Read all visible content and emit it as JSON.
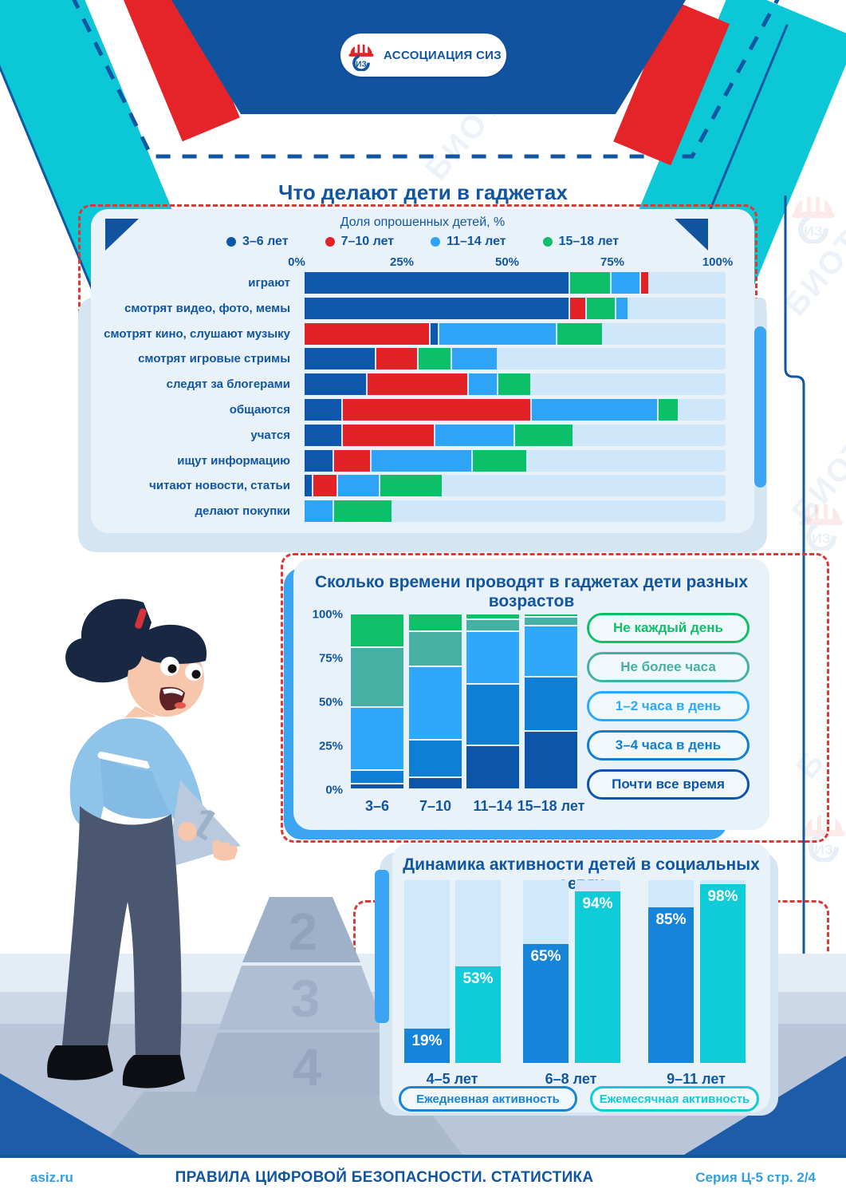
{
  "logo": {
    "text": "АССОЦИАЦИЯ СИЗ"
  },
  "watermark_text": "БИОТ",
  "footer": {
    "site": "asiz.ru",
    "title": "ПРАВИЛА ЦИФРОВОЙ БЕЗОПАСНОСТИ. СТАТИСТИКА",
    "series": "Серия Ц-5 стр. 2/4"
  },
  "colors": {
    "navy_text": "#1156a3",
    "header_band": "#11539e",
    "decor_red": "#e42429",
    "decor_cyan": "#0cc8d6",
    "dashed_red": "#d93a36",
    "panel_bg": "#e9f2f8",
    "panel_shadow": "#d6e5f2",
    "accent_blue": "#3ba5f4",
    "track_light": "#cfe7fa"
  },
  "chart_data": [
    {
      "type": "bar",
      "variant": "horizontal-stacked",
      "title": "Что делают дети в гаджетах",
      "subtitle": "Доля опрошенных детей, %",
      "xlim": [
        0,
        100
      ],
      "axis_ticks": [
        "0%",
        "25%",
        "50%",
        "75%",
        "100%"
      ],
      "legend": [
        {
          "label": "3–6 лет",
          "color": "#0d57ac"
        },
        {
          "label": "7–10 лет",
          "color": "#e32227"
        },
        {
          "label": "11–14 лет",
          "color": "#2fa3f7"
        },
        {
          "label": "15–18 лет",
          "color": "#0cc069"
        }
      ],
      "rows": [
        {
          "label": "играют",
          "segments": [
            {
              "age": "3–6 лет",
              "value": 63
            },
            {
              "age": "15–18 лет",
              "value": 10
            },
            {
              "age": "11–14 лет",
              "value": 7
            },
            {
              "age": "7–10 лет",
              "value": 2
            }
          ]
        },
        {
          "label": "смотрят видео, фото, мемы",
          "segments": [
            {
              "age": "3–6 лет",
              "value": 63
            },
            {
              "age": "7–10 лет",
              "value": 4
            },
            {
              "age": "15–18 лет",
              "value": 7
            },
            {
              "age": "11–14 лет",
              "value": 3
            }
          ]
        },
        {
          "label": "смотрят кино, слушают музыку",
          "segments": [
            {
              "age": "7–10 лет",
              "value": 30
            },
            {
              "age": "3–6 лет",
              "value": 2
            },
            {
              "age": "11–14 лет",
              "value": 28
            },
            {
              "age": "15–18 лет",
              "value": 11
            }
          ]
        },
        {
          "label": "смотрят игровые стримы",
          "segments": [
            {
              "age": "3–6 лет",
              "value": 17
            },
            {
              "age": "7–10 лет",
              "value": 10
            },
            {
              "age": "15–18 лет",
              "value": 8
            },
            {
              "age": "11–14 лет",
              "value": 11
            }
          ]
        },
        {
          "label": "следят за блогерами",
          "segments": [
            {
              "age": "3–6 лет",
              "value": 15
            },
            {
              "age": "7–10 лет",
              "value": 24
            },
            {
              "age": "11–14 лет",
              "value": 7
            },
            {
              "age": "15–18 лет",
              "value": 8
            }
          ]
        },
        {
          "label": "общаются",
          "segments": [
            {
              "age": "3–6 лет",
              "value": 9
            },
            {
              "age": "7–10 лет",
              "value": 45
            },
            {
              "age": "11–14 лет",
              "value": 30
            },
            {
              "age": "15–18 лет",
              "value": 5
            }
          ]
        },
        {
          "label": "учатся",
          "segments": [
            {
              "age": "3–6 лет",
              "value": 9
            },
            {
              "age": "7–10 лет",
              "value": 22
            },
            {
              "age": "11–14 лет",
              "value": 19
            },
            {
              "age": "15–18 лет",
              "value": 14
            }
          ]
        },
        {
          "label": "ищут информацию",
          "segments": [
            {
              "age": "3–6 лет",
              "value": 7
            },
            {
              "age": "7–10 лет",
              "value": 9
            },
            {
              "age": "11–14 лет",
              "value": 24
            },
            {
              "age": "15–18 лет",
              "value": 13
            }
          ]
        },
        {
          "label": "читают новости, статьи",
          "segments": [
            {
              "age": "3–6 лет",
              "value": 2
            },
            {
              "age": "7–10 лет",
              "value": 6
            },
            {
              "age": "11–14 лет",
              "value": 10
            },
            {
              "age": "15–18 лет",
              "value": 15
            }
          ]
        },
        {
          "label": "делают покупки",
          "segments": [
            {
              "age": "11–14 лет",
              "value": 7
            },
            {
              "age": "15–18 лет",
              "value": 14
            }
          ]
        }
      ]
    },
    {
      "type": "bar",
      "variant": "vertical-stacked-100",
      "title": "Сколько времени проводят в гаджетах дети разных возрастов",
      "categories": [
        "3–6",
        "7–10",
        "11–14",
        "15–18 лет"
      ],
      "y_ticks": [
        "0%",
        "25%",
        "50%",
        "75%",
        "100%"
      ],
      "series_bottom_to_top": [
        {
          "name": "Почти все время",
          "color": "#0d55a8",
          "values": [
            3,
            7,
            25,
            33
          ]
        },
        {
          "name": "3–4 часа в день",
          "color": "#0f7fd6",
          "values": [
            8,
            21,
            35,
            31
          ]
        },
        {
          "name": "1–2 часа в день",
          "color": "#2fa7fb",
          "values": [
            36,
            42,
            30,
            29
          ]
        },
        {
          "name": "Не более часа",
          "color": "#47b0a5",
          "values": [
            34,
            20,
            7,
            5
          ]
        },
        {
          "name": "Не каждый день",
          "color": "#0fc069",
          "values": [
            19,
            10,
            3,
            2
          ]
        }
      ],
      "legend": [
        {
          "label": "Не каждый день",
          "color": "#0fc069"
        },
        {
          "label": "Не более часа",
          "color": "#47b0a5"
        },
        {
          "label": "1–2 часа в день",
          "color": "#2fa7fb"
        },
        {
          "label": "3–4 часа в день",
          "color": "#0f7fd6"
        },
        {
          "label": "Почти все время",
          "color": "#0d55a8"
        }
      ]
    },
    {
      "type": "bar",
      "variant": "grouped-vertical",
      "title": "Динамика активности детей в социальных сетях",
      "categories": [
        "4–5 лет",
        "6–8 лет",
        "9–11 лет"
      ],
      "ylim": [
        0,
        100
      ],
      "value_suffix": "%",
      "series": [
        {
          "name": "Ежедневная активность",
          "color": "#1584d9",
          "values": [
            19,
            65,
            85
          ]
        },
        {
          "name": "Ежемесячная активность",
          "color": "#0fccd8",
          "values": [
            53,
            94,
            98
          ]
        }
      ]
    }
  ]
}
